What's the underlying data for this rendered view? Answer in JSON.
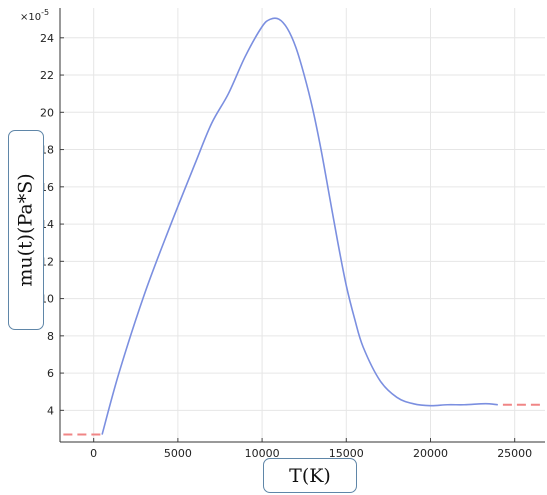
{
  "chart_data": {
    "type": "line",
    "title": "",
    "xlabel": "T(K)",
    "ylabel": "mu(t)(Pa*S)",
    "y_multiplier": "×10",
    "y_multiplier_exp": "-5",
    "xlim": [
      -2000,
      26800
    ],
    "ylim": [
      2.3,
      25.6
    ],
    "xticks": [
      0,
      5000,
      10000,
      15000,
      20000,
      25000
    ],
    "xtick_labels": [
      "0",
      "5000",
      "10000",
      "15000",
      "20000",
      "25000"
    ],
    "yticks": [
      4,
      6,
      8,
      10,
      12,
      14,
      16,
      18,
      20,
      22,
      24
    ],
    "ytick_labels": [
      "4",
      "6",
      "8",
      "10",
      "12",
      "14",
      "16",
      "18",
      "20",
      "22",
      "24"
    ],
    "grid": true,
    "series": [
      {
        "style": "solid",
        "color": "#7b8fe0",
        "x": [
          500,
          1500,
          3000,
          4500,
          6000,
          7000,
          8000,
          9000,
          10000,
          10500,
          11000,
          11500,
          12000,
          12500,
          13000,
          13500,
          14000,
          14500,
          15000,
          15500,
          16000,
          17000,
          18000,
          19000,
          20000,
          21000,
          22000,
          23000,
          23500,
          24000
        ],
        "y": [
          2.7,
          6.0,
          10.2,
          13.8,
          17.2,
          19.4,
          21.0,
          23.0,
          24.6,
          25.0,
          25.0,
          24.5,
          23.5,
          22.0,
          20.2,
          18.0,
          15.5,
          13.0,
          10.7,
          8.9,
          7.4,
          5.6,
          4.7,
          4.35,
          4.25,
          4.3,
          4.3,
          4.35,
          4.35,
          4.3
        ]
      },
      {
        "style": "dashed",
        "color": "#f08585",
        "x": [
          -1800,
          500
        ],
        "y": [
          2.7,
          2.7
        ]
      },
      {
        "style": "dashed",
        "color": "#f08585",
        "x": [
          24300,
          26700
        ],
        "y": [
          4.3,
          4.3
        ]
      }
    ]
  }
}
